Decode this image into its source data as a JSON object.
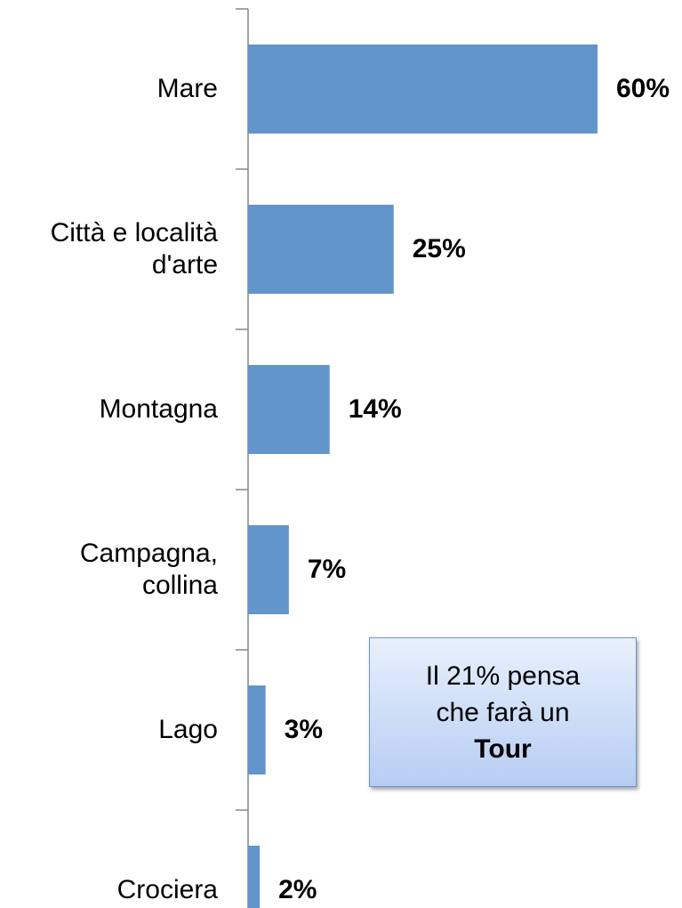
{
  "chart_data": {
    "type": "barh",
    "categories": [
      "Mare",
      "Città e località d'arte",
      "Montagna",
      "Campagna, collina",
      "Lago",
      "Crociera"
    ],
    "values": [
      60,
      25,
      14,
      7,
      3,
      2
    ],
    "value_labels": [
      "60%",
      "25%",
      "14%",
      "7%",
      "3%",
      "2%"
    ],
    "color": "#6195cb",
    "annotation": {
      "text": "Il 21% pensa che farà un",
      "bold": "Tour"
    }
  }
}
